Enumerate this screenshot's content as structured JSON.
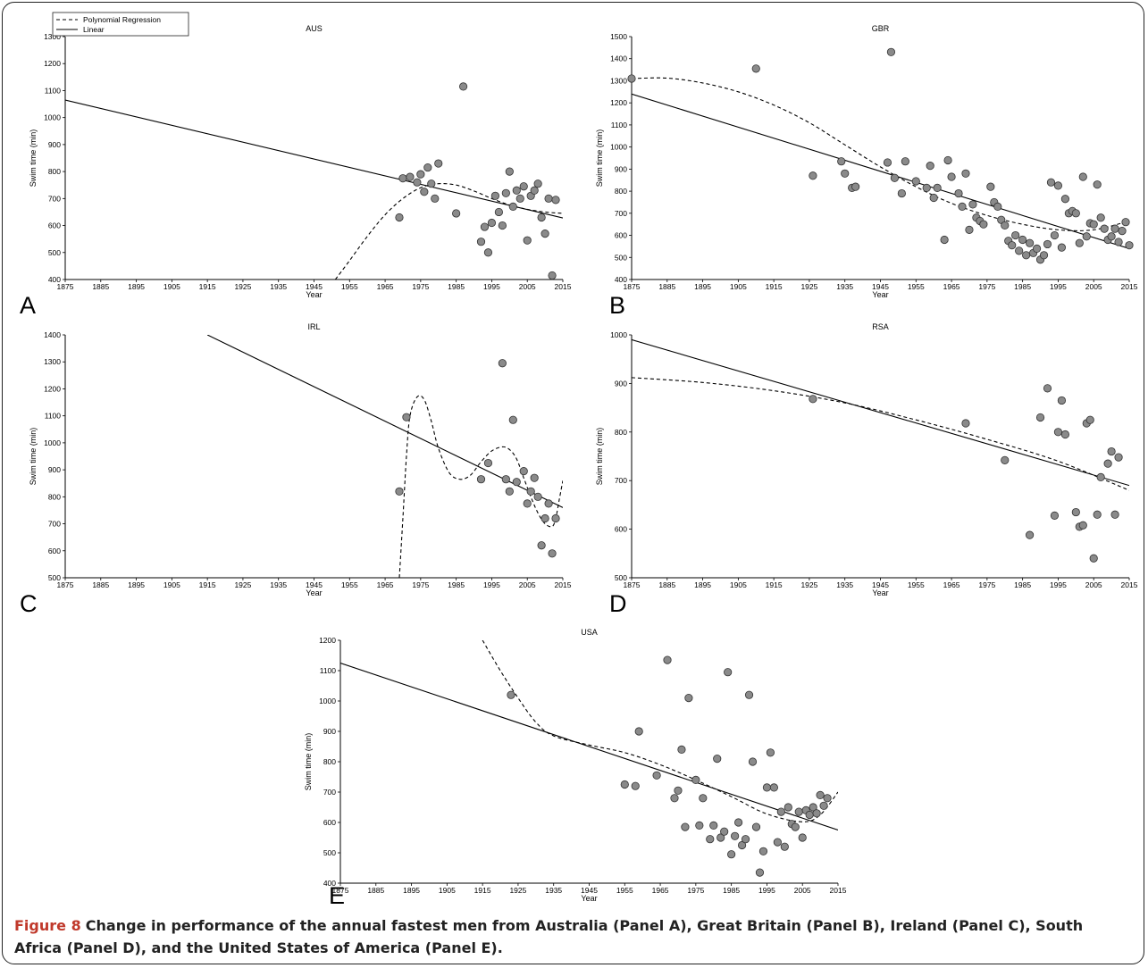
{
  "figure_label": "Figure 8",
  "caption": "Change in performance of the annual fastest men from Australia (Panel A), Great Britain (Panel B), Ireland (Panel C), South Africa (Panel D), and the United States of America (Panel E).",
  "legend": {
    "poly": "Polynomial Regression",
    "linear": "Linear"
  },
  "colors": {
    "point_fill": "#8a8a8a",
    "point_stroke": "#333333",
    "line": "#000000",
    "frame": "#222222",
    "caption_label": "#c0392b"
  },
  "chart_data": [
    {
      "type": "scatter",
      "letter": "A",
      "title": "AUS",
      "xlabel": "Year",
      "ylabel": "Swim time (min)",
      "xlim": [
        1875,
        2015
      ],
      "ylim": [
        400,
        1300
      ],
      "xticks": [
        1875,
        1885,
        1895,
        1905,
        1915,
        1925,
        1935,
        1945,
        1955,
        1965,
        1975,
        1985,
        1995,
        2005,
        2015
      ],
      "yticks": [
        400,
        500,
        600,
        700,
        800,
        900,
        1000,
        1100,
        1200,
        1300
      ],
      "legend": "top-left",
      "linear": [
        [
          1875,
          1065
        ],
        [
          2015,
          628
        ]
      ],
      "poly": [
        [
          1951,
          400
        ],
        [
          1955,
          470
        ],
        [
          1960,
          560
        ],
        [
          1965,
          640
        ],
        [
          1970,
          700
        ],
        [
          1975,
          740
        ],
        [
          1980,
          755
        ],
        [
          1985,
          750
        ],
        [
          1990,
          728
        ],
        [
          1995,
          700
        ],
        [
          2000,
          676
        ],
        [
          2005,
          660
        ],
        [
          2010,
          650
        ],
        [
          2015,
          645
        ]
      ],
      "points": [
        [
          1969,
          630
        ],
        [
          1970,
          775
        ],
        [
          1972,
          780
        ],
        [
          1974,
          760
        ],
        [
          1975,
          790
        ],
        [
          1976,
          725
        ],
        [
          1977,
          815
        ],
        [
          1978,
          755
        ],
        [
          1979,
          700
        ],
        [
          1980,
          830
        ],
        [
          1985,
          645
        ],
        [
          1987,
          1115
        ],
        [
          1992,
          540
        ],
        [
          1993,
          595
        ],
        [
          1994,
          500
        ],
        [
          1995,
          610
        ],
        [
          1996,
          710
        ],
        [
          1997,
          650
        ],
        [
          1998,
          600
        ],
        [
          1999,
          720
        ],
        [
          2000,
          800
        ],
        [
          2001,
          670
        ],
        [
          2002,
          730
        ],
        [
          2003,
          700
        ],
        [
          2004,
          745
        ],
        [
          2005,
          545
        ],
        [
          2006,
          710
        ],
        [
          2007,
          730
        ],
        [
          2008,
          755
        ],
        [
          2009,
          630
        ],
        [
          2010,
          570
        ],
        [
          2011,
          700
        ],
        [
          2012,
          415
        ],
        [
          2013,
          695
        ]
      ]
    },
    {
      "type": "scatter",
      "letter": "B",
      "title": "GBR",
      "xlabel": "Year",
      "ylabel": "Swim time (min)",
      "xlim": [
        1875,
        2015
      ],
      "ylim": [
        400,
        1500
      ],
      "xticks": [
        1875,
        1885,
        1895,
        1905,
        1915,
        1925,
        1935,
        1945,
        1955,
        1965,
        1975,
        1985,
        1995,
        2005,
        2015
      ],
      "yticks": [
        400,
        500,
        600,
        700,
        800,
        900,
        1000,
        1100,
        1200,
        1300,
        1400,
        1500
      ],
      "linear": [
        [
          1875,
          1240
        ],
        [
          2015,
          540
        ]
      ],
      "poly": [
        [
          1875,
          1310
        ],
        [
          1885,
          1312
        ],
        [
          1895,
          1290
        ],
        [
          1905,
          1250
        ],
        [
          1915,
          1190
        ],
        [
          1925,
          1110
        ],
        [
          1935,
          1010
        ],
        [
          1945,
          910
        ],
        [
          1955,
          820
        ],
        [
          1965,
          745
        ],
        [
          1975,
          690
        ],
        [
          1985,
          650
        ],
        [
          1995,
          625
        ],
        [
          2005,
          625
        ],
        [
          2015,
          665
        ]
      ],
      "points": [
        [
          1875,
          1310
        ],
        [
          1910,
          1355
        ],
        [
          1926,
          870
        ],
        [
          1934,
          935
        ],
        [
          1935,
          880
        ],
        [
          1937,
          815
        ],
        [
          1938,
          820
        ],
        [
          1947,
          930
        ],
        [
          1948,
          1430
        ],
        [
          1949,
          860
        ],
        [
          1951,
          790
        ],
        [
          1952,
          935
        ],
        [
          1955,
          845
        ],
        [
          1958,
          815
        ],
        [
          1959,
          915
        ],
        [
          1960,
          770
        ],
        [
          1961,
          815
        ],
        [
          1963,
          580
        ],
        [
          1964,
          940
        ],
        [
          1965,
          865
        ],
        [
          1967,
          790
        ],
        [
          1968,
          730
        ],
        [
          1969,
          880
        ],
        [
          1970,
          625
        ],
        [
          1971,
          740
        ],
        [
          1972,
          680
        ],
        [
          1973,
          665
        ],
        [
          1974,
          650
        ],
        [
          1976,
          820
        ],
        [
          1977,
          750
        ],
        [
          1978,
          730
        ],
        [
          1979,
          670
        ],
        [
          1980,
          645
        ],
        [
          1981,
          575
        ],
        [
          1982,
          555
        ],
        [
          1983,
          600
        ],
        [
          1984,
          530
        ],
        [
          1985,
          580
        ],
        [
          1986,
          510
        ],
        [
          1987,
          565
        ],
        [
          1988,
          520
        ],
        [
          1989,
          540
        ],
        [
          1990,
          490
        ],
        [
          1991,
          510
        ],
        [
          1992,
          560
        ],
        [
          1993,
          840
        ],
        [
          1994,
          600
        ],
        [
          1995,
          825
        ],
        [
          1996,
          545
        ],
        [
          1997,
          765
        ],
        [
          1998,
          700
        ],
        [
          1999,
          710
        ],
        [
          2000,
          700
        ],
        [
          2001,
          565
        ],
        [
          2002,
          865
        ],
        [
          2003,
          595
        ],
        [
          2004,
          655
        ],
        [
          2005,
          650
        ],
        [
          2006,
          830
        ],
        [
          2007,
          680
        ],
        [
          2008,
          630
        ],
        [
          2009,
          580
        ],
        [
          2010,
          595
        ],
        [
          2011,
          630
        ],
        [
          2012,
          570
        ],
        [
          2013,
          620
        ],
        [
          2014,
          660
        ],
        [
          2015,
          555
        ]
      ]
    },
    {
      "type": "scatter",
      "letter": "C",
      "title": "IRL",
      "xlabel": "Year",
      "ylabel": "Swim time (min)",
      "xlim": [
        1875,
        2015
      ],
      "ylim": [
        500,
        1400
      ],
      "xticks": [
        1875,
        1885,
        1895,
        1905,
        1915,
        1925,
        1935,
        1945,
        1955,
        1965,
        1975,
        1985,
        1995,
        2005,
        2015
      ],
      "yticks": [
        500,
        600,
        700,
        800,
        900,
        1000,
        1100,
        1200,
        1300,
        1400
      ],
      "linear": [
        [
          1915,
          1400
        ],
        [
          2015,
          760
        ]
      ],
      "poly": [
        [
          1969,
          500
        ],
        [
          1970,
          720
        ],
        [
          1971,
          950
        ],
        [
          1972,
          1100
        ],
        [
          1974,
          1170
        ],
        [
          1976,
          1160
        ],
        [
          1978,
          1080
        ],
        [
          1980,
          980
        ],
        [
          1983,
          890
        ],
        [
          1986,
          865
        ],
        [
          1989,
          880
        ],
        [
          1992,
          930
        ],
        [
          1995,
          970
        ],
        [
          1998,
          985
        ],
        [
          2000,
          975
        ],
        [
          2002,
          940
        ],
        [
          2004,
          870
        ],
        [
          2006,
          800
        ],
        [
          2008,
          740
        ],
        [
          2010,
          700
        ],
        [
          2012,
          690
        ],
        [
          2013,
          720
        ],
        [
          2014,
          790
        ],
        [
          2015,
          860
        ]
      ],
      "points": [
        [
          1969,
          820
        ],
        [
          1971,
          1095
        ],
        [
          1992,
          865
        ],
        [
          1994,
          925
        ],
        [
          1998,
          1295
        ],
        [
          1999,
          865
        ],
        [
          2000,
          820
        ],
        [
          2001,
          1085
        ],
        [
          2002,
          855
        ],
        [
          2004,
          895
        ],
        [
          2005,
          775
        ],
        [
          2006,
          820
        ],
        [
          2007,
          870
        ],
        [
          2008,
          800
        ],
        [
          2009,
          620
        ],
        [
          2010,
          720
        ],
        [
          2011,
          775
        ],
        [
          2012,
          590
        ],
        [
          2013,
          720
        ]
      ]
    },
    {
      "type": "scatter",
      "letter": "D",
      "title": "RSA",
      "xlabel": "Year",
      "ylabel": "Swim time (min)",
      "xlim": [
        1875,
        2015
      ],
      "ylim": [
        500,
        1000
      ],
      "xticks": [
        1875,
        1885,
        1895,
        1905,
        1915,
        1925,
        1935,
        1945,
        1955,
        1965,
        1975,
        1985,
        1995,
        2005,
        2015
      ],
      "yticks": [
        500,
        600,
        700,
        800,
        900,
        1000
      ],
      "linear": [
        [
          1875,
          990
        ],
        [
          2015,
          690
        ]
      ],
      "poly": [
        [
          1875,
          912
        ],
        [
          1895,
          902
        ],
        [
          1915,
          885
        ],
        [
          1935,
          860
        ],
        [
          1955,
          825
        ],
        [
          1975,
          785
        ],
        [
          1995,
          740
        ],
        [
          2015,
          680
        ]
      ],
      "points": [
        [
          1926,
          868
        ],
        [
          1969,
          818
        ],
        [
          1980,
          742
        ],
        [
          1987,
          588
        ],
        [
          1990,
          830
        ],
        [
          1992,
          890
        ],
        [
          1994,
          628
        ],
        [
          1995,
          800
        ],
        [
          1996,
          865
        ],
        [
          1997,
          795
        ],
        [
          2000,
          635
        ],
        [
          2001,
          605
        ],
        [
          2002,
          608
        ],
        [
          2003,
          818
        ],
        [
          2004,
          825
        ],
        [
          2005,
          540
        ],
        [
          2006,
          630
        ],
        [
          2007,
          707
        ],
        [
          2009,
          735
        ],
        [
          2010,
          760
        ],
        [
          2011,
          630
        ],
        [
          2012,
          748
        ]
      ]
    },
    {
      "type": "scatter",
      "letter": "E",
      "title": "USA",
      "xlabel": "Year",
      "ylabel": "Swim time (min)",
      "xlim": [
        1875,
        2015
      ],
      "ylim": [
        400,
        1200
      ],
      "xticks": [
        1875,
        1885,
        1895,
        1905,
        1915,
        1925,
        1935,
        1945,
        1955,
        1965,
        1975,
        1985,
        1995,
        2005,
        2015
      ],
      "yticks": [
        400,
        500,
        600,
        700,
        800,
        900,
        1000,
        1100,
        1200
      ],
      "linear": [
        [
          1875,
          1125
        ],
        [
          2015,
          575
        ]
      ],
      "poly": [
        [
          1915,
          1200
        ],
        [
          1920,
          1100
        ],
        [
          1925,
          1010
        ],
        [
          1930,
          930
        ],
        [
          1935,
          885
        ],
        [
          1945,
          855
        ],
        [
          1955,
          830
        ],
        [
          1965,
          790
        ],
        [
          1975,
          740
        ],
        [
          1985,
          685
        ],
        [
          1995,
          628
        ],
        [
          2005,
          602
        ],
        [
          2010,
          625
        ],
        [
          2015,
          700
        ]
      ],
      "points": [
        [
          1923,
          1020
        ],
        [
          1955,
          725
        ],
        [
          1958,
          720
        ],
        [
          1959,
          900
        ],
        [
          1964,
          755
        ],
        [
          1967,
          1135
        ],
        [
          1969,
          680
        ],
        [
          1970,
          705
        ],
        [
          1971,
          840
        ],
        [
          1972,
          585
        ],
        [
          1973,
          1010
        ],
        [
          1975,
          740
        ],
        [
          1976,
          590
        ],
        [
          1977,
          680
        ],
        [
          1979,
          545
        ],
        [
          1980,
          590
        ],
        [
          1981,
          810
        ],
        [
          1982,
          550
        ],
        [
          1983,
          570
        ],
        [
          1984,
          1095
        ],
        [
          1985,
          495
        ],
        [
          1986,
          555
        ],
        [
          1987,
          600
        ],
        [
          1988,
          525
        ],
        [
          1989,
          545
        ],
        [
          1990,
          1020
        ],
        [
          1991,
          800
        ],
        [
          1992,
          585
        ],
        [
          1993,
          435
        ],
        [
          1994,
          505
        ],
        [
          1995,
          715
        ],
        [
          1996,
          830
        ],
        [
          1997,
          715
        ],
        [
          1998,
          535
        ],
        [
          1999,
          635
        ],
        [
          2000,
          520
        ],
        [
          2001,
          650
        ],
        [
          2002,
          595
        ],
        [
          2003,
          585
        ],
        [
          2004,
          635
        ],
        [
          2005,
          550
        ],
        [
          2006,
          640
        ],
        [
          2007,
          625
        ],
        [
          2008,
          650
        ],
        [
          2009,
          630
        ],
        [
          2010,
          690
        ],
        [
          2011,
          655
        ],
        [
          2012,
          680
        ]
      ]
    }
  ]
}
